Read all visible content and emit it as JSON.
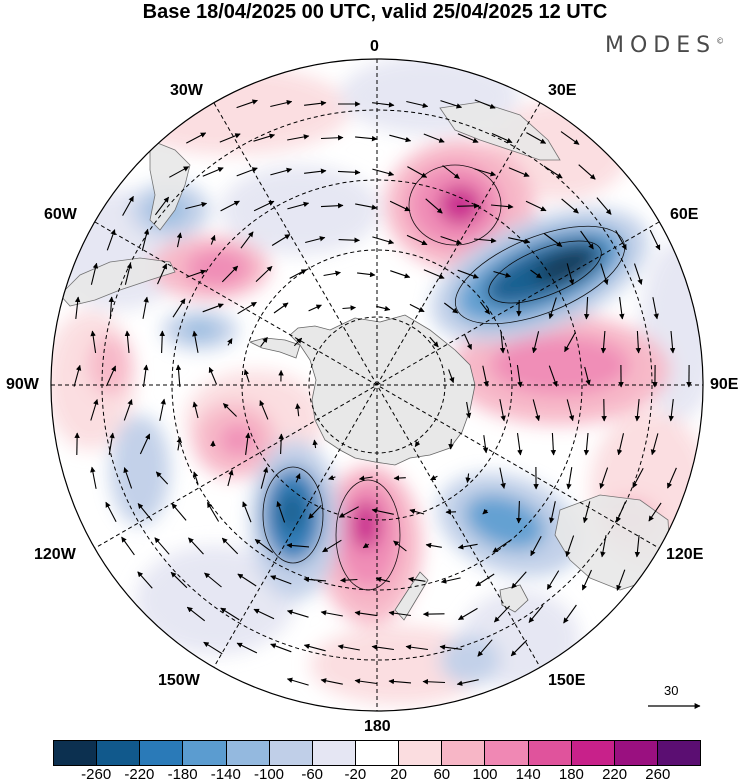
{
  "title": "Base 18/04/2025 00 UTC, valid 25/04/2025 12 UTC",
  "brand": {
    "name": "MODES",
    "mark": "©"
  },
  "longitude_labels": {
    "lon_0": "0",
    "lon_30e": "30E",
    "lon_60e": "60E",
    "lon_90e": "90E",
    "lon_120e": "120E",
    "lon_150e": "150E",
    "lon_180": "180",
    "lon_150w": "150W",
    "lon_120w": "120W",
    "lon_90w": "90W",
    "lon_60w": "60W",
    "lon_30w": "30W"
  },
  "reference_vector": {
    "label": "30"
  },
  "colorbar": {
    "colors": [
      "#0c3050",
      "#11598c",
      "#2a7ab8",
      "#5b9cd0",
      "#94b9df",
      "#c0cfe8",
      "#e5e6f3",
      "#ffffff",
      "#fbdde0",
      "#f7b6c6",
      "#f088b4",
      "#e0539c",
      "#c8218a",
      "#9a1080",
      "#5b0e72"
    ],
    "tick_labels": [
      "-260",
      "-220",
      "-180",
      "-140",
      "-100",
      "-60",
      "-20",
      "20",
      "60",
      "100",
      "140",
      "180",
      "220",
      "260"
    ]
  },
  "map": {
    "projection": "south-polar-stereographic",
    "background_color": "#ffffff",
    "land_color": "#e8e8e8"
  }
}
